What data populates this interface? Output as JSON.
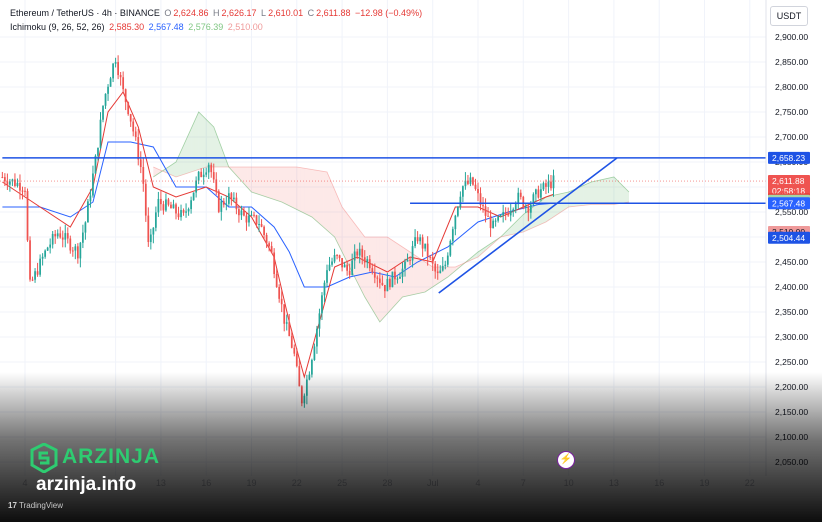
{
  "header": {
    "symbol": "Ethereum / TetherUS · 4h · BINANCE",
    "o_label": "O",
    "o_value": "2,624.86",
    "h_label": "H",
    "h_value": "2,626.17",
    "l_label": "L",
    "l_value": "2,610.01",
    "c_label": "C",
    "c_value": "2,611.88",
    "change": "−12.98 (−0.49%)",
    "ichimoku_label": "Ichimoku (9, 26, 52, 26)",
    "ichimoku_values": [
      "2,585.30",
      "2,567.48",
      "2,576.39",
      "2,510.00"
    ]
  },
  "currency_button": "USDT",
  "brand": {
    "name": "ARZINJA",
    "url": "arzinja.info"
  },
  "footer": "TradingView",
  "colors": {
    "up": "#26a69a",
    "down": "#ef5350",
    "conversion": "#e53935",
    "base": "#2962ff",
    "span_a": "#43a047",
    "span_b": "#ef9a9a",
    "lagging": "#8bc34a",
    "trendline": "#1e53e5"
  },
  "chart_data": {
    "type": "candlestick",
    "timeframe": "4h",
    "ylim": [
      2025,
      2960
    ],
    "y_ticks": [
      2050,
      2100,
      2150,
      2200,
      2250,
      2300,
      2350,
      2400,
      2450,
      2500,
      2550,
      2600,
      2650,
      2700,
      2750,
      2800,
      2850,
      2900
    ],
    "y_tick_labels": [
      "2,050.00",
      "2,100.00",
      "2,150.00",
      "2,200.00",
      "2,250.00",
      "2,300.00",
      "2,350.00",
      "2,400.00",
      "2,450.00",
      "2,500.00",
      "2,550.00",
      "2,600.00",
      "2,650.00",
      "2,700.00",
      "2,750.00",
      "2,800.00",
      "2,850.00",
      "2,900.00"
    ],
    "x_labels": [
      {
        "label": "4",
        "day": 4
      },
      {
        "label": "10",
        "day": 10
      },
      {
        "label": "13",
        "day": 13
      },
      {
        "label": "16",
        "day": 16
      },
      {
        "label": "19",
        "day": 19
      },
      {
        "label": "22",
        "day": 22
      },
      {
        "label": "25",
        "day": 25
      },
      {
        "label": "28",
        "day": 28
      },
      {
        "label": "Jul",
        "day": 31
      },
      {
        "label": "4",
        "day": 34
      },
      {
        "label": "7",
        "day": 37
      },
      {
        "label": "10",
        "day": 40
      },
      {
        "label": "13",
        "day": 43
      },
      {
        "label": "16",
        "day": 46
      },
      {
        "label": "19",
        "day": 49
      },
      {
        "label": "22",
        "day": 52
      }
    ],
    "price_tags": [
      {
        "value": 2658.23,
        "text": "2,658.23",
        "color": "#1e53e5"
      },
      {
        "value": 2611.88,
        "text": "2,611.88",
        "sub": "02:58:18",
        "color": "#ef5350"
      },
      {
        "value": 2585.3,
        "text": "2,585.30",
        "color": "#e53935"
      },
      {
        "value": 2576.39,
        "text": "2,576.39",
        "color": "#a5d6a7"
      },
      {
        "value": 2567.48,
        "text": "2,567.48",
        "color": "#2962ff"
      },
      {
        "value": 2510.0,
        "text": "2,510.00",
        "color": "#ef9a9a"
      },
      {
        "value": 2504.44,
        "text": "2,504.44",
        "color": "#1e53e5"
      }
    ],
    "horizontal_lines": [
      {
        "value": 2658.23,
        "day_start": 2.5,
        "day_end": 53.5
      },
      {
        "value": 2567.48,
        "day_start": 29.5,
        "day_end": 53.5
      }
    ],
    "trendline": {
      "x1": 31.4,
      "y1": 2388,
      "x2": 43.2,
      "y2": 2658
    },
    "current_price_line": 2611.88,
    "key_prices": [
      {
        "day": 2.5,
        "price": 2620
      },
      {
        "day": 4.0,
        "price": 2600
      },
      {
        "day": 4.3,
        "price": 2400
      },
      {
        "day": 5.5,
        "price": 2480
      },
      {
        "day": 6.2,
        "price": 2510
      },
      {
        "day": 7.5,
        "price": 2470
      },
      {
        "day": 8.0,
        "price": 2530
      },
      {
        "day": 8.7,
        "price": 2660
      },
      {
        "day": 9.2,
        "price": 2770
      },
      {
        "day": 9.6,
        "price": 2820
      },
      {
        "day": 10.0,
        "price": 2860
      },
      {
        "day": 10.5,
        "price": 2790
      },
      {
        "day": 10.9,
        "price": 2750
      },
      {
        "day": 11.4,
        "price": 2680
      },
      {
        "day": 11.8,
        "price": 2620
      },
      {
        "day": 12.2,
        "price": 2470
      },
      {
        "day": 12.8,
        "price": 2570
      },
      {
        "day": 13.5,
        "price": 2560
      },
      {
        "day": 14.5,
        "price": 2540
      },
      {
        "day": 15.5,
        "price": 2620
      },
      {
        "day": 16.2,
        "price": 2650
      },
      {
        "day": 16.8,
        "price": 2560
      },
      {
        "day": 17.5,
        "price": 2580
      },
      {
        "day": 18.5,
        "price": 2540
      },
      {
        "day": 19.5,
        "price": 2530
      },
      {
        "day": 20.3,
        "price": 2470
      },
      {
        "day": 21.2,
        "price": 2330
      },
      {
        "day": 21.8,
        "price": 2270
      },
      {
        "day": 22.3,
        "price": 2170
      },
      {
        "day": 22.8,
        "price": 2230
      },
      {
        "day": 23.4,
        "price": 2330
      },
      {
        "day": 24.0,
        "price": 2440
      },
      {
        "day": 24.6,
        "price": 2460
      },
      {
        "day": 25.4,
        "price": 2430
      },
      {
        "day": 26.0,
        "price": 2470
      },
      {
        "day": 26.8,
        "price": 2450
      },
      {
        "day": 27.8,
        "price": 2400
      },
      {
        "day": 28.4,
        "price": 2420
      },
      {
        "day": 29.2,
        "price": 2440
      },
      {
        "day": 30.0,
        "price": 2500
      },
      {
        "day": 30.6,
        "price": 2470
      },
      {
        "day": 31.3,
        "price": 2420
      },
      {
        "day": 31.8,
        "price": 2440
      },
      {
        "day": 32.3,
        "price": 2520
      },
      {
        "day": 32.9,
        "price": 2600
      },
      {
        "day": 33.6,
        "price": 2610
      },
      {
        "day": 34.4,
        "price": 2550
      },
      {
        "day": 35.0,
        "price": 2520
      },
      {
        "day": 35.8,
        "price": 2545
      },
      {
        "day": 36.6,
        "price": 2580
      },
      {
        "day": 37.3,
        "price": 2560
      },
      {
        "day": 38.0,
        "price": 2590
      },
      {
        "day": 38.5,
        "price": 2600
      },
      {
        "day": 39.0,
        "price": 2612
      }
    ],
    "ichimoku": {
      "tenkan": [
        {
          "day": 2.5,
          "value": 2610
        },
        {
          "day": 5,
          "value": 2560
        },
        {
          "day": 7,
          "value": 2520
        },
        {
          "day": 8.5,
          "value": 2600
        },
        {
          "day": 9.5,
          "value": 2750
        },
        {
          "day": 10.5,
          "value": 2790
        },
        {
          "day": 11.5,
          "value": 2720
        },
        {
          "day": 12.5,
          "value": 2600
        },
        {
          "day": 14,
          "value": 2580
        },
        {
          "day": 16,
          "value": 2600
        },
        {
          "day": 17.5,
          "value": 2580
        },
        {
          "day": 19,
          "value": 2540
        },
        {
          "day": 20.5,
          "value": 2460
        },
        {
          "day": 21.5,
          "value": 2330
        },
        {
          "day": 22.5,
          "value": 2220
        },
        {
          "day": 23.5,
          "value": 2330
        },
        {
          "day": 24.5,
          "value": 2440
        },
        {
          "day": 26,
          "value": 2460
        },
        {
          "day": 28,
          "value": 2430
        },
        {
          "day": 29.5,
          "value": 2460
        },
        {
          "day": 31,
          "value": 2450
        },
        {
          "day": 32.5,
          "value": 2560
        },
        {
          "day": 34,
          "value": 2560
        },
        {
          "day": 35.5,
          "value": 2540
        },
        {
          "day": 37,
          "value": 2560
        },
        {
          "day": 38.5,
          "value": 2580
        },
        {
          "day": 39,
          "value": 2585.3
        }
      ],
      "kijun": [
        {
          "day": 2.5,
          "value": 2560
        },
        {
          "day": 5,
          "value": 2560
        },
        {
          "day": 7,
          "value": 2540
        },
        {
          "day": 8.5,
          "value": 2570
        },
        {
          "day": 9.5,
          "value": 2690
        },
        {
          "day": 11,
          "value": 2690
        },
        {
          "day": 12.5,
          "value": 2680
        },
        {
          "day": 14,
          "value": 2600
        },
        {
          "day": 16,
          "value": 2600
        },
        {
          "day": 17.5,
          "value": 2560
        },
        {
          "day": 19,
          "value": 2560
        },
        {
          "day": 20.5,
          "value": 2520
        },
        {
          "day": 21.5,
          "value": 2470
        },
        {
          "day": 22.5,
          "value": 2400
        },
        {
          "day": 24,
          "value": 2400
        },
        {
          "day": 25.5,
          "value": 2420
        },
        {
          "day": 27,
          "value": 2430
        },
        {
          "day": 28.5,
          "value": 2420
        },
        {
          "day": 30,
          "value": 2450
        },
        {
          "day": 32,
          "value": 2480
        },
        {
          "day": 34,
          "value": 2530
        },
        {
          "day": 36,
          "value": 2550
        },
        {
          "day": 38,
          "value": 2565
        },
        {
          "day": 39,
          "value": 2567.48
        }
      ],
      "senkou_a": [
        {
          "day": 12.5,
          "value": 2620
        },
        {
          "day": 14,
          "value": 2650
        },
        {
          "day": 15.5,
          "value": 2750
        },
        {
          "day": 16.5,
          "value": 2720
        },
        {
          "day": 17.5,
          "value": 2640
        },
        {
          "day": 19,
          "value": 2590
        },
        {
          "day": 21,
          "value": 2570
        },
        {
          "day": 23,
          "value": 2540
        },
        {
          "day": 24.5,
          "value": 2500
        },
        {
          "day": 25.5,
          "value": 2440
        },
        {
          "day": 26.5,
          "value": 2380
        },
        {
          "day": 27.5,
          "value": 2330
        },
        {
          "day": 29,
          "value": 2380
        },
        {
          "day": 30.5,
          "value": 2390
        },
        {
          "day": 32,
          "value": 2420
        },
        {
          "day": 34,
          "value": 2470
        },
        {
          "day": 35.5,
          "value": 2500
        },
        {
          "day": 37,
          "value": 2545
        },
        {
          "day": 38.5,
          "value": 2580
        },
        {
          "day": 40,
          "value": 2590
        },
        {
          "day": 41.5,
          "value": 2610
        },
        {
          "day": 43,
          "value": 2620
        },
        {
          "day": 44,
          "value": 2590
        }
      ],
      "senkou_b": [
        {
          "day": 12.5,
          "value": 2640
        },
        {
          "day": 14,
          "value": 2620
        },
        {
          "day": 16,
          "value": 2640
        },
        {
          "day": 18,
          "value": 2640
        },
        {
          "day": 20,
          "value": 2640
        },
        {
          "day": 22,
          "value": 2640
        },
        {
          "day": 24,
          "value": 2630
        },
        {
          "day": 25,
          "value": 2560
        },
        {
          "day": 26.5,
          "value": 2500
        },
        {
          "day": 28,
          "value": 2500
        },
        {
          "day": 29.5,
          "value": 2470
        },
        {
          "day": 31,
          "value": 2440
        },
        {
          "day": 32.5,
          "value": 2440
        },
        {
          "day": 34,
          "value": 2460
        },
        {
          "day": 35.5,
          "value": 2500
        },
        {
          "day": 37,
          "value": 2510
        },
        {
          "day": 38.5,
          "value": 2530
        },
        {
          "day": 40,
          "value": 2560
        },
        {
          "day": 41.5,
          "value": 2565
        },
        {
          "day": 43,
          "value": 2565
        },
        {
          "day": 44,
          "value": 2570
        }
      ]
    }
  }
}
